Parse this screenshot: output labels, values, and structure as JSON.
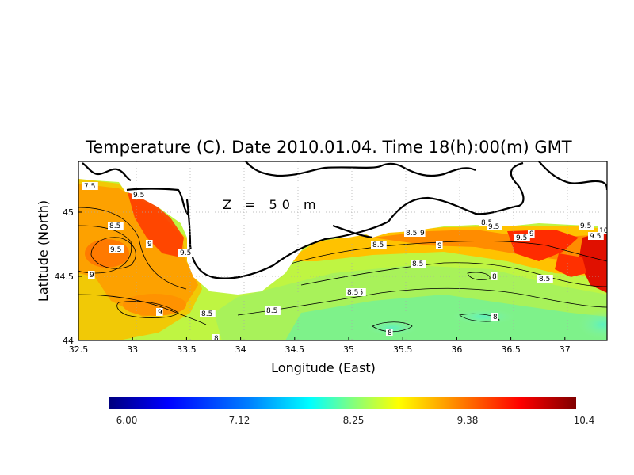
{
  "map": {
    "title": "Temperature (C). Date 2010.01.04. Time 18(h):00(m) GMT",
    "xlabel": "Longitude (East)",
    "ylabel": "Latitude (North)",
    "annotation": "Z = 50 m",
    "x_ticks": [
      "32.5",
      "33",
      "33.5",
      "34",
      "34.5",
      "35",
      "35.5",
      "36",
      "36.5",
      "37"
    ],
    "y_ticks": [
      "44",
      "44.5",
      "45"
    ],
    "contour_labels": [
      "7.5",
      "9.5",
      "8.5",
      "9",
      "9.5",
      "9.5",
      "9",
      "8.5",
      "9",
      "8.5",
      "9.5",
      "8.5",
      "8.5",
      "9",
      "8.5",
      "9",
      "8.5",
      "9.5",
      "9.5",
      "9",
      "8.5",
      "9.5",
      "10",
      "9.5",
      "8",
      "8",
      "8",
      "8",
      "8.5",
      "8.5"
    ]
  },
  "colorbar": {
    "min": 6.0,
    "max": 10.4,
    "tick_labels": [
      "6.00",
      "7.12",
      "8.25",
      "9.38",
      "10.4"
    ],
    "colors": [
      "#00007f",
      "#0000ff",
      "#0080ff",
      "#00ffff",
      "#80ff80",
      "#ffff00",
      "#ff8000",
      "#ff0000",
      "#7f0000"
    ]
  }
}
